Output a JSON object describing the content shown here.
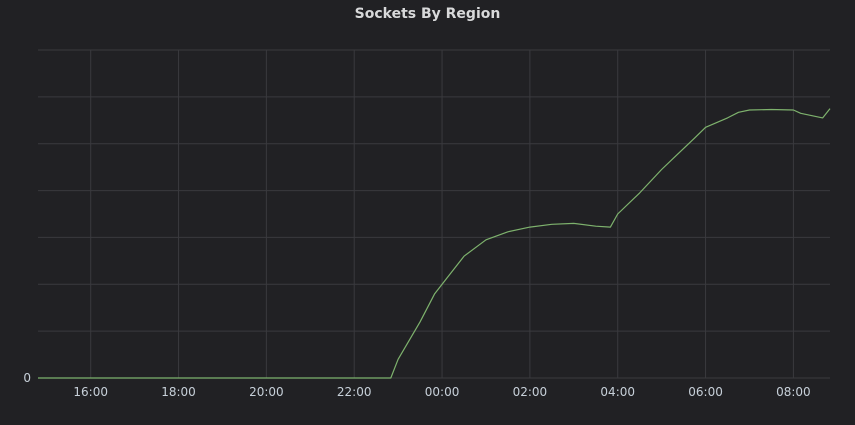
{
  "panel": {
    "title": "Sockets By Region"
  },
  "chart_data": {
    "type": "line",
    "title": "Sockets By Region",
    "xlabel": "",
    "ylabel": "",
    "grid": true,
    "x_tick_labels": [
      "16:00",
      "18:00",
      "20:00",
      "22:00",
      "00:00",
      "02:00",
      "04:00",
      "06:00",
      "08:00"
    ],
    "y_tick_labels": [
      "0"
    ],
    "xlim": [
      "14:48",
      "08:50"
    ],
    "ylim": [
      0,
      7
    ],
    "colors": {
      "series": "#7eb26d",
      "grid": "#3a3a3e",
      "background": "#212124",
      "text": "#c7d0d9"
    },
    "series": [
      {
        "x": [
          "14:48",
          "16:00",
          "18:00",
          "20:00",
          "22:00",
          "22:50",
          "23:00",
          "23:30",
          "23:50",
          "00:05",
          "00:30",
          "01:00",
          "01:30",
          "02:00",
          "02:30",
          "03:00",
          "03:30",
          "03:50",
          "04:00",
          "04:30",
          "05:00",
          "05:20",
          "05:45",
          "06:00",
          "06:30",
          "06:45",
          "07:00",
          "07:30",
          "08:00",
          "08:10",
          "08:40",
          "08:50"
        ],
        "values": [
          0,
          0,
          0,
          0,
          0,
          0,
          0.4,
          1.2,
          1.8,
          2.1,
          2.6,
          2.95,
          3.12,
          3.22,
          3.28,
          3.3,
          3.24,
          3.22,
          3.5,
          3.95,
          4.45,
          4.75,
          5.12,
          5.35,
          5.55,
          5.67,
          5.72,
          5.73,
          5.72,
          5.65,
          5.55,
          5.75
        ]
      }
    ]
  }
}
